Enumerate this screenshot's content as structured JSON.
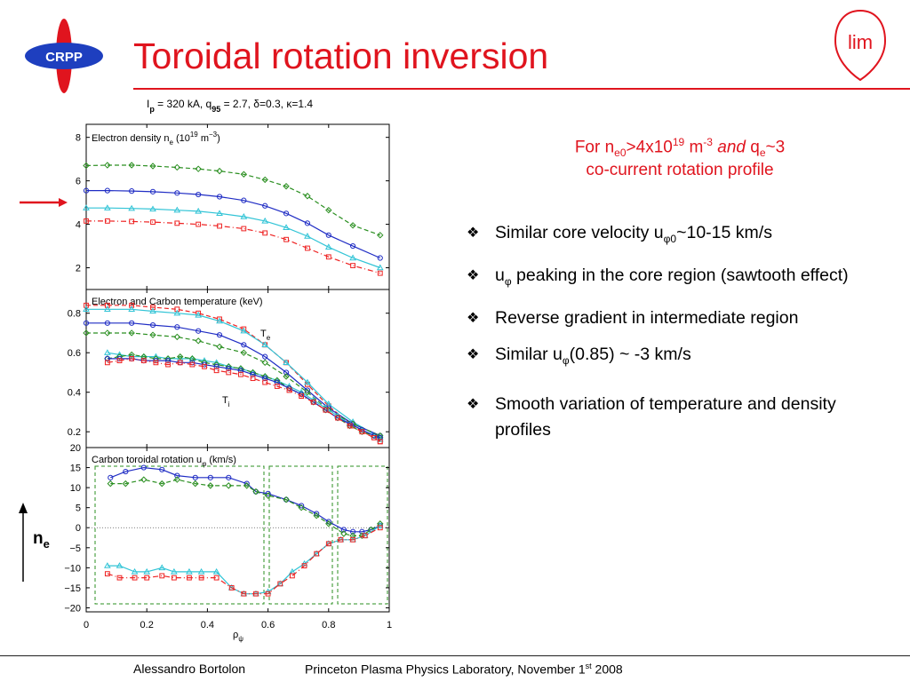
{
  "logo": {
    "crpp_text": "CRPP",
    "lim_text": "lim"
  },
  "header": {
    "title": "Toroidal rotation inversion"
  },
  "figure": {
    "header": {
      "ip": "I",
      "ip_sub": "p",
      "mid1": " = 320 kA, q",
      "q_sub": "95",
      "mid2": " = 2.7, δ=0.3, κ=1.4"
    },
    "marker_label": "n",
    "marker_label_sub": "e",
    "te_label": "T",
    "te_sub": "e",
    "ti_label": "T",
    "ti_sub": "i"
  },
  "right_panel": {
    "line1": {
      "pre": "For n",
      "sub1": "e0",
      "mid": ">4x10",
      "sup1": "19",
      "mid2": " m",
      "sup2": "-3",
      "and": "and",
      "q": " q",
      "q_sub": "e",
      "tail": "~3"
    },
    "line2": "co-current rotation profile",
    "bullets": [
      {
        "mark": "❖",
        "parts": [
          "Similar core velocity u",
          "φ0",
          "~10-15 km/s"
        ]
      },
      {
        "mark": "❖",
        "parts": [
          "u",
          "φ",
          " peaking in the core region (sawtooth effect)"
        ]
      },
      {
        "mark": "❖",
        "parts": [
          "Reverse gradient in intermediate region",
          "",
          ""
        ]
      },
      {
        "mark": "❖",
        "parts": [
          "Similar u",
          "φ",
          "(0.85) ~ -3 km/s"
        ]
      },
      {
        "mark": "❖",
        "parts": [
          "Smooth variation of temperature and density profiles",
          "",
          ""
        ]
      }
    ]
  },
  "footer": {
    "author": "Alessandro Bortolon",
    "venue": "Princeton Plasma Physics Laboratory, November 1",
    "venue_sup": "st",
    "year": " 2008"
  },
  "colors": {
    "accent_red": "#e0141e",
    "blue": "#1f2cc4",
    "cyan": "#31c4d6",
    "green": "#2b8f21",
    "red_series": "#e22"
  },
  "chart_data": [
    {
      "type": "line",
      "title": "Electron density n",
      "title_sub": "e",
      "title_unit": " (10",
      "title_sup": "19",
      "title_unit2": " m",
      "title_sup2": "−3",
      "title_end": ")",
      "ylim": [
        1,
        8.6
      ],
      "xlim": [
        0,
        1
      ],
      "yticks": [
        2,
        4,
        6,
        8
      ],
      "series": [
        {
          "color": "green",
          "marker": "diamond",
          "dash": "dashed",
          "x": [
            0.0,
            0.07,
            0.15,
            0.22,
            0.3,
            0.37,
            0.44,
            0.52,
            0.59,
            0.66,
            0.73,
            0.8,
            0.88,
            0.97
          ],
          "y": [
            6.7,
            6.72,
            6.72,
            6.68,
            6.62,
            6.55,
            6.45,
            6.3,
            6.05,
            5.75,
            5.3,
            4.65,
            3.95,
            3.5
          ]
        },
        {
          "color": "blue",
          "marker": "circle",
          "dash": "solid",
          "x": [
            0.0,
            0.07,
            0.15,
            0.22,
            0.3,
            0.37,
            0.44,
            0.52,
            0.59,
            0.66,
            0.73,
            0.8,
            0.88,
            0.97
          ],
          "y": [
            5.55,
            5.55,
            5.53,
            5.5,
            5.44,
            5.37,
            5.27,
            5.1,
            4.85,
            4.5,
            4.05,
            3.5,
            3.0,
            2.45
          ]
        },
        {
          "color": "cyan",
          "marker": "triangle",
          "dash": "solid",
          "x": [
            0.0,
            0.07,
            0.15,
            0.22,
            0.3,
            0.37,
            0.44,
            0.52,
            0.59,
            0.66,
            0.73,
            0.8,
            0.88,
            0.97
          ],
          "y": [
            4.75,
            4.75,
            4.73,
            4.7,
            4.65,
            4.6,
            4.5,
            4.35,
            4.15,
            3.85,
            3.45,
            2.95,
            2.45,
            2.0
          ]
        },
        {
          "color": "red",
          "marker": "square",
          "dash": "dashdot",
          "x": [
            0.0,
            0.07,
            0.15,
            0.22,
            0.3,
            0.37,
            0.44,
            0.52,
            0.59,
            0.66,
            0.73,
            0.8,
            0.88,
            0.97
          ],
          "y": [
            4.15,
            4.15,
            4.13,
            4.1,
            4.05,
            4.0,
            3.92,
            3.8,
            3.6,
            3.3,
            2.9,
            2.5,
            2.1,
            1.75
          ]
        }
      ]
    },
    {
      "type": "line",
      "title": "Electron and Carbon temperature (keV)",
      "ylim": [
        0.12,
        0.92
      ],
      "xlim": [
        0,
        1
      ],
      "yticks": [
        0.2,
        0.4,
        0.6,
        0.8
      ],
      "series": [
        {
          "name": "Te red",
          "color": "red",
          "marker": "square",
          "dash": "dashed",
          "x": [
            0.0,
            0.07,
            0.15,
            0.22,
            0.3,
            0.37,
            0.44,
            0.52,
            0.59,
            0.66,
            0.73,
            0.8,
            0.88,
            0.97
          ],
          "y": [
            0.84,
            0.84,
            0.84,
            0.83,
            0.82,
            0.8,
            0.77,
            0.72,
            0.64,
            0.55,
            0.44,
            0.33,
            0.23,
            0.15
          ]
        },
        {
          "name": "Te cyan",
          "color": "cyan",
          "marker": "triangle",
          "dash": "solid",
          "x": [
            0.0,
            0.07,
            0.15,
            0.22,
            0.3,
            0.37,
            0.44,
            0.52,
            0.59,
            0.66,
            0.73,
            0.8,
            0.88,
            0.97
          ],
          "y": [
            0.82,
            0.82,
            0.82,
            0.81,
            0.8,
            0.79,
            0.76,
            0.71,
            0.64,
            0.55,
            0.45,
            0.34,
            0.25,
            0.17
          ]
        },
        {
          "name": "Te blue",
          "color": "blue",
          "marker": "circle",
          "dash": "solid",
          "x": [
            0.0,
            0.07,
            0.15,
            0.22,
            0.3,
            0.37,
            0.44,
            0.52,
            0.59,
            0.66,
            0.73,
            0.8,
            0.88,
            0.97
          ],
          "y": [
            0.75,
            0.75,
            0.75,
            0.74,
            0.73,
            0.71,
            0.69,
            0.64,
            0.58,
            0.5,
            0.41,
            0.32,
            0.24,
            0.18
          ]
        },
        {
          "name": "Te green",
          "color": "green",
          "marker": "diamond",
          "dash": "dashed",
          "x": [
            0.0,
            0.07,
            0.15,
            0.22,
            0.3,
            0.37,
            0.44,
            0.52,
            0.59,
            0.66,
            0.73,
            0.8,
            0.88,
            0.97
          ],
          "y": [
            0.7,
            0.7,
            0.7,
            0.69,
            0.68,
            0.66,
            0.63,
            0.6,
            0.55,
            0.48,
            0.4,
            0.31,
            0.24,
            0.18
          ]
        },
        {
          "name": "Ti cyan",
          "color": "cyan",
          "marker": "triangle",
          "dash": "solid",
          "x": [
            0.07,
            0.11,
            0.15,
            0.19,
            0.23,
            0.27,
            0.31,
            0.35,
            0.39,
            0.43,
            0.47,
            0.51,
            0.55,
            0.59,
            0.63,
            0.67,
            0.71,
            0.75,
            0.79,
            0.83,
            0.87,
            0.91,
            0.95,
            0.97
          ],
          "y": [
            0.6,
            0.59,
            0.58,
            0.58,
            0.58,
            0.57,
            0.57,
            0.57,
            0.56,
            0.55,
            0.53,
            0.52,
            0.5,
            0.48,
            0.46,
            0.43,
            0.4,
            0.36,
            0.32,
            0.28,
            0.24,
            0.21,
            0.18,
            0.16
          ]
        },
        {
          "name": "Ti green",
          "color": "green",
          "marker": "diamond",
          "dash": "dashed",
          "x": [
            0.07,
            0.11,
            0.15,
            0.19,
            0.23,
            0.27,
            0.31,
            0.35,
            0.39,
            0.43,
            0.47,
            0.51,
            0.55,
            0.59,
            0.63,
            0.67,
            0.71,
            0.75,
            0.79,
            0.83,
            0.87,
            0.91,
            0.95,
            0.97
          ],
          "y": [
            0.57,
            0.58,
            0.59,
            0.58,
            0.57,
            0.57,
            0.58,
            0.57,
            0.55,
            0.54,
            0.53,
            0.52,
            0.5,
            0.48,
            0.46,
            0.42,
            0.39,
            0.35,
            0.31,
            0.27,
            0.23,
            0.2,
            0.18,
            0.17
          ]
        },
        {
          "name": "Ti blue",
          "color": "blue",
          "marker": "circle",
          "dash": "solid",
          "x": [
            0.07,
            0.11,
            0.15,
            0.19,
            0.23,
            0.27,
            0.31,
            0.35,
            0.39,
            0.43,
            0.47,
            0.51,
            0.55,
            0.59,
            0.63,
            0.67,
            0.71,
            0.75,
            0.79,
            0.83,
            0.87,
            0.91,
            0.95,
            0.97
          ],
          "y": [
            0.57,
            0.57,
            0.57,
            0.56,
            0.56,
            0.56,
            0.55,
            0.55,
            0.54,
            0.53,
            0.52,
            0.51,
            0.49,
            0.47,
            0.45,
            0.42,
            0.39,
            0.35,
            0.31,
            0.27,
            0.24,
            0.21,
            0.18,
            0.17
          ]
        },
        {
          "name": "Ti red",
          "color": "red",
          "marker": "square",
          "dash": "dashdot",
          "x": [
            0.07,
            0.11,
            0.15,
            0.19,
            0.23,
            0.27,
            0.31,
            0.35,
            0.39,
            0.43,
            0.47,
            0.51,
            0.55,
            0.59,
            0.63,
            0.67,
            0.71,
            0.75,
            0.79,
            0.83,
            0.87,
            0.91,
            0.95,
            0.97
          ],
          "y": [
            0.55,
            0.56,
            0.57,
            0.56,
            0.55,
            0.54,
            0.55,
            0.54,
            0.53,
            0.51,
            0.5,
            0.49,
            0.47,
            0.45,
            0.43,
            0.41,
            0.38,
            0.35,
            0.31,
            0.27,
            0.23,
            0.2,
            0.17,
            0.15
          ]
        }
      ]
    },
    {
      "type": "line",
      "title": "Carbon toroidal rotation u",
      "title_sub": "φ",
      "title_unit": " (km/s)",
      "xlabel": "ρ",
      "xlabel_sub": "ψ",
      "ylim": [
        -21,
        20
      ],
      "xlim": [
        0,
        1
      ],
      "yticks": [
        -20,
        -15,
        -10,
        -5,
        0,
        5,
        10,
        15,
        20
      ],
      "xticks": [
        0,
        0.2,
        0.4,
        0.6,
        0.8,
        1
      ],
      "xtick_labels": [
        "0",
        "0.2",
        "0.4",
        "0.6",
        "0.8",
        "1"
      ],
      "series": [
        {
          "color": "blue",
          "marker": "circle",
          "dash": "solid",
          "x": [
            0.08,
            0.13,
            0.19,
            0.25,
            0.3,
            0.36,
            0.41,
            0.47,
            0.53,
            0.56,
            0.6,
            0.66,
            0.71,
            0.76,
            0.8,
            0.85,
            0.88,
            0.91,
            0.94,
            0.97
          ],
          "y": [
            12.5,
            14,
            15,
            14.5,
            13,
            12.5,
            12.5,
            12.5,
            11,
            9,
            8.5,
            7,
            5.5,
            3.5,
            1.5,
            -0.5,
            -1,
            -1,
            -0.5,
            0.5
          ]
        },
        {
          "color": "green",
          "marker": "diamond",
          "dash": "dashed",
          "x": [
            0.08,
            0.13,
            0.19,
            0.25,
            0.3,
            0.36,
            0.41,
            0.47,
            0.53,
            0.56,
            0.6,
            0.66,
            0.71,
            0.76,
            0.8,
            0.85,
            0.88,
            0.91,
            0.94,
            0.97
          ],
          "y": [
            11,
            11,
            12,
            11,
            12,
            11,
            10.5,
            10.5,
            10.5,
            9,
            8,
            7,
            5,
            3,
            1,
            -1.5,
            -2,
            -2,
            -0.5,
            1
          ]
        },
        {
          "color": "cyan",
          "marker": "triangle",
          "dash": "solid",
          "x": [
            0.07,
            0.11,
            0.16,
            0.2,
            0.25,
            0.29,
            0.34,
            0.38,
            0.43,
            0.48,
            0.52,
            0.56,
            0.6,
            0.64,
            0.68,
            0.72,
            0.76,
            0.8,
            0.84,
            0.88,
            0.92,
            0.97
          ],
          "y": [
            -9.5,
            -9.5,
            -11,
            -11,
            -10,
            -11,
            -11,
            -11,
            -11,
            -15,
            -16.5,
            -16.5,
            -16,
            -14,
            -11,
            -9,
            -6.5,
            -4,
            -3,
            -3,
            -2,
            0.5
          ]
        },
        {
          "color": "red",
          "marker": "square",
          "dash": "dashdot",
          "x": [
            0.07,
            0.11,
            0.16,
            0.2,
            0.25,
            0.29,
            0.34,
            0.38,
            0.43,
            0.48,
            0.52,
            0.56,
            0.6,
            0.64,
            0.68,
            0.72,
            0.76,
            0.8,
            0.84,
            0.88,
            0.92,
            0.97
          ],
          "y": [
            -11.5,
            -12.5,
            -12.5,
            -12.5,
            -12,
            -12.5,
            -12.5,
            -12.5,
            -12.5,
            -15,
            -16.5,
            -16.5,
            -16.5,
            -14,
            -12,
            -9.5,
            -6.5,
            -4,
            -3,
            -3,
            -2,
            0
          ]
        }
      ]
    }
  ]
}
